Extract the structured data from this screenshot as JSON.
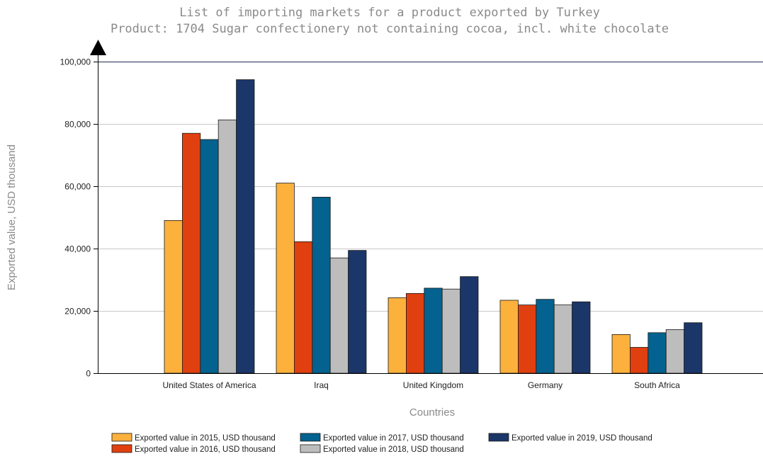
{
  "chart_data": {
    "type": "bar",
    "title": "List of importing markets for a product exported by Turkey",
    "subtitle": "Product: 1704 Sugar confectionery not containing cocoa, incl. white chocolate",
    "xlabel": "Countries",
    "ylabel": "Exported value, USD thousand",
    "ylim": [
      0,
      100000
    ],
    "yticks": [
      0,
      20000,
      40000,
      60000,
      80000,
      100000
    ],
    "ytick_labels": [
      "0",
      "20,000",
      "40,000",
      "60,000",
      "80,000",
      "100,000"
    ],
    "grid": true,
    "legend_position": "bottom",
    "categories": [
      "United States of America",
      "Iraq",
      "United Kingdom",
      "Germany",
      "South Africa"
    ],
    "series": [
      {
        "name": "Exported value in 2015, USD thousand",
        "color": "#fbb13c",
        "values": [
          49000,
          61000,
          24200,
          23400,
          12400
        ]
      },
      {
        "name": "Exported value in 2016, USD thousand",
        "color": "#e0400f",
        "values": [
          77000,
          42200,
          25600,
          21900,
          8300
        ]
      },
      {
        "name": "Exported value in 2017, USD thousand",
        "color": "#03628f",
        "values": [
          75000,
          56500,
          27300,
          23700,
          13000
        ]
      },
      {
        "name": "Exported value in 2018, USD thousand",
        "color": "#bdbdbd",
        "values": [
          81300,
          37000,
          27000,
          21900,
          14000
        ]
      },
      {
        "name": "Exported value in 2019, USD thousand",
        "color": "#1b3668",
        "values": [
          94200,
          39400,
          31000,
          22900,
          16200
        ]
      }
    ]
  }
}
